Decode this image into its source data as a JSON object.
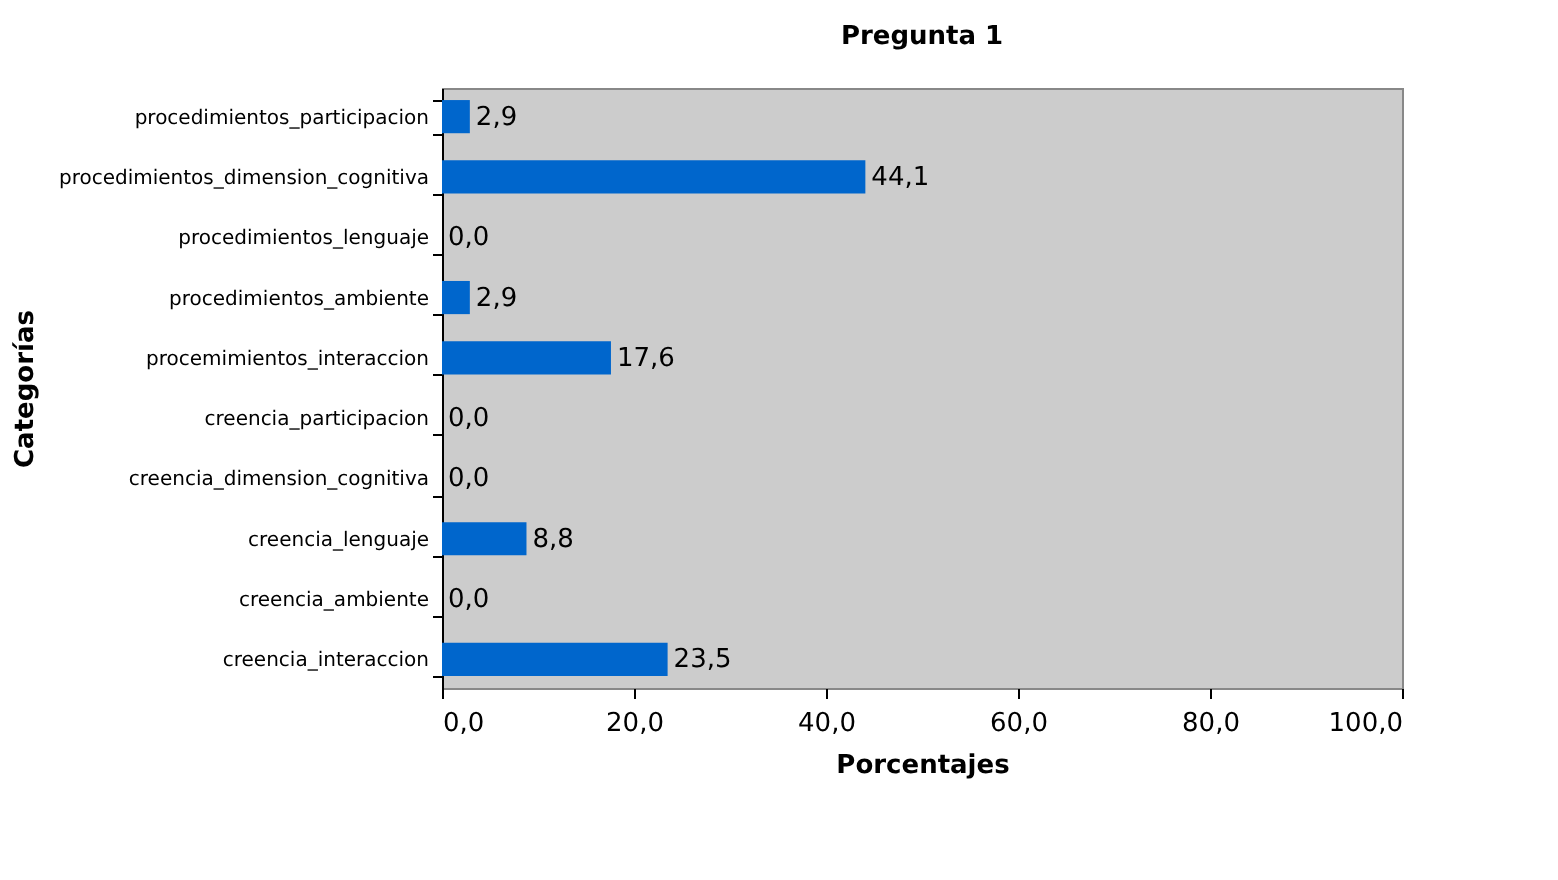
{
  "chart_data": {
    "type": "bar",
    "orientation": "horizontal",
    "title": "Pregunta 1",
    "xlabel": "Porcentajes",
    "ylabel": "Categorías",
    "categories": [
      "procedimientos_participacion",
      "procedimientos_dimension_cognitiva",
      "procedimientos_lenguaje",
      "procedimientos_ambiente",
      "procemimientos_interaccion",
      "creencia_participacion",
      "creencia_dimension_cognitiva",
      "creencia_lenguaje",
      "creencia_ambiente",
      "creencia_interaccion"
    ],
    "values": [
      2.9,
      44.1,
      0.0,
      2.9,
      17.6,
      0.0,
      0.0,
      8.8,
      0.0,
      23.5
    ],
    "value_labels": [
      "2,9",
      "44,1",
      "0,0",
      "2,9",
      "17,6",
      "0,0",
      "0,0",
      "8,8",
      "0,0",
      "23,5"
    ],
    "color": "#0066cc",
    "xlim": [
      0,
      100
    ],
    "xticks": [
      {
        "value": 0,
        "label": "0,0"
      },
      {
        "value": 20,
        "label": "20,0"
      },
      {
        "value": 40,
        "label": "40,0"
      },
      {
        "value": 60,
        "label": "60,0"
      },
      {
        "value": 80,
        "label": "80,0"
      },
      {
        "value": 100,
        "label": "100,0"
      }
    ],
    "grid": false
  }
}
